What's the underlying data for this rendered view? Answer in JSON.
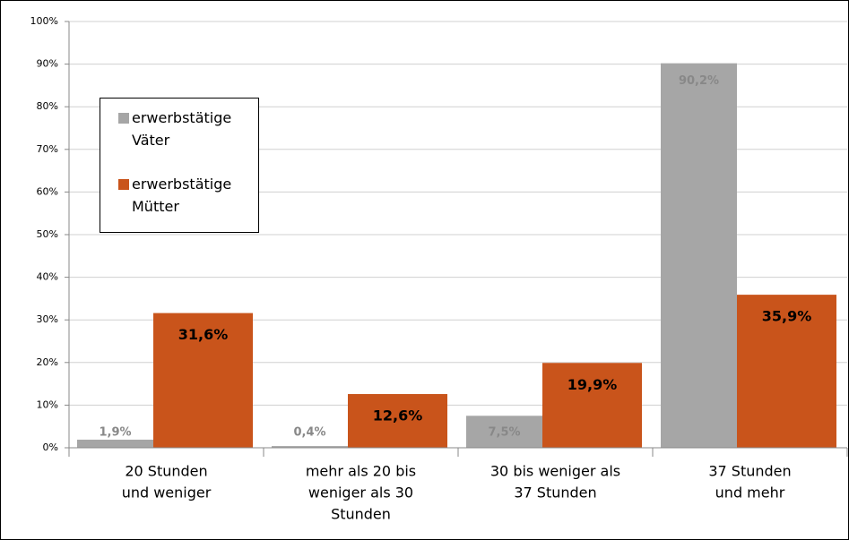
{
  "chart_data": {
    "type": "bar",
    "categories": [
      [
        "20 Stunden",
        "und weniger"
      ],
      [
        "mehr als 20 bis",
        "weniger als 30",
        "Stunden"
      ],
      [
        "30 bis  weniger als",
        "37 Stunden"
      ],
      [
        "37 Stunden",
        "und mehr"
      ]
    ],
    "series": [
      {
        "name": "erwerbstätige Väter",
        "color": "#a6a6a6",
        "values": [
          1.9,
          0.4,
          7.5,
          90.2
        ],
        "value_labels": [
          "1,9%",
          "0,4%",
          "7,5%",
          "90,2%"
        ]
      },
      {
        "name": "erwerbstätige Mütter",
        "color": "#c9541b",
        "values": [
          31.6,
          12.6,
          19.9,
          35.9
        ],
        "value_labels": [
          "31,6%",
          "12,6%",
          "19,9%",
          "35,9%"
        ]
      }
    ],
    "ylim": [
      0,
      100
    ],
    "yticks": [
      {
        "value": 0,
        "label": "0%"
      },
      {
        "value": 10,
        "label": "10%"
      },
      {
        "value": 20,
        "label": "20%"
      },
      {
        "value": 30,
        "label": "30%"
      },
      {
        "value": 40,
        "label": "40%"
      },
      {
        "value": 50,
        "label": "50%"
      },
      {
        "value": 60,
        "label": "60%"
      },
      {
        "value": 70,
        "label": "70%"
      },
      {
        "value": 80,
        "label": "80%"
      },
      {
        "value": 90,
        "label": "90%"
      },
      {
        "value": 100,
        "label": "100%"
      }
    ],
    "grid": true
  }
}
